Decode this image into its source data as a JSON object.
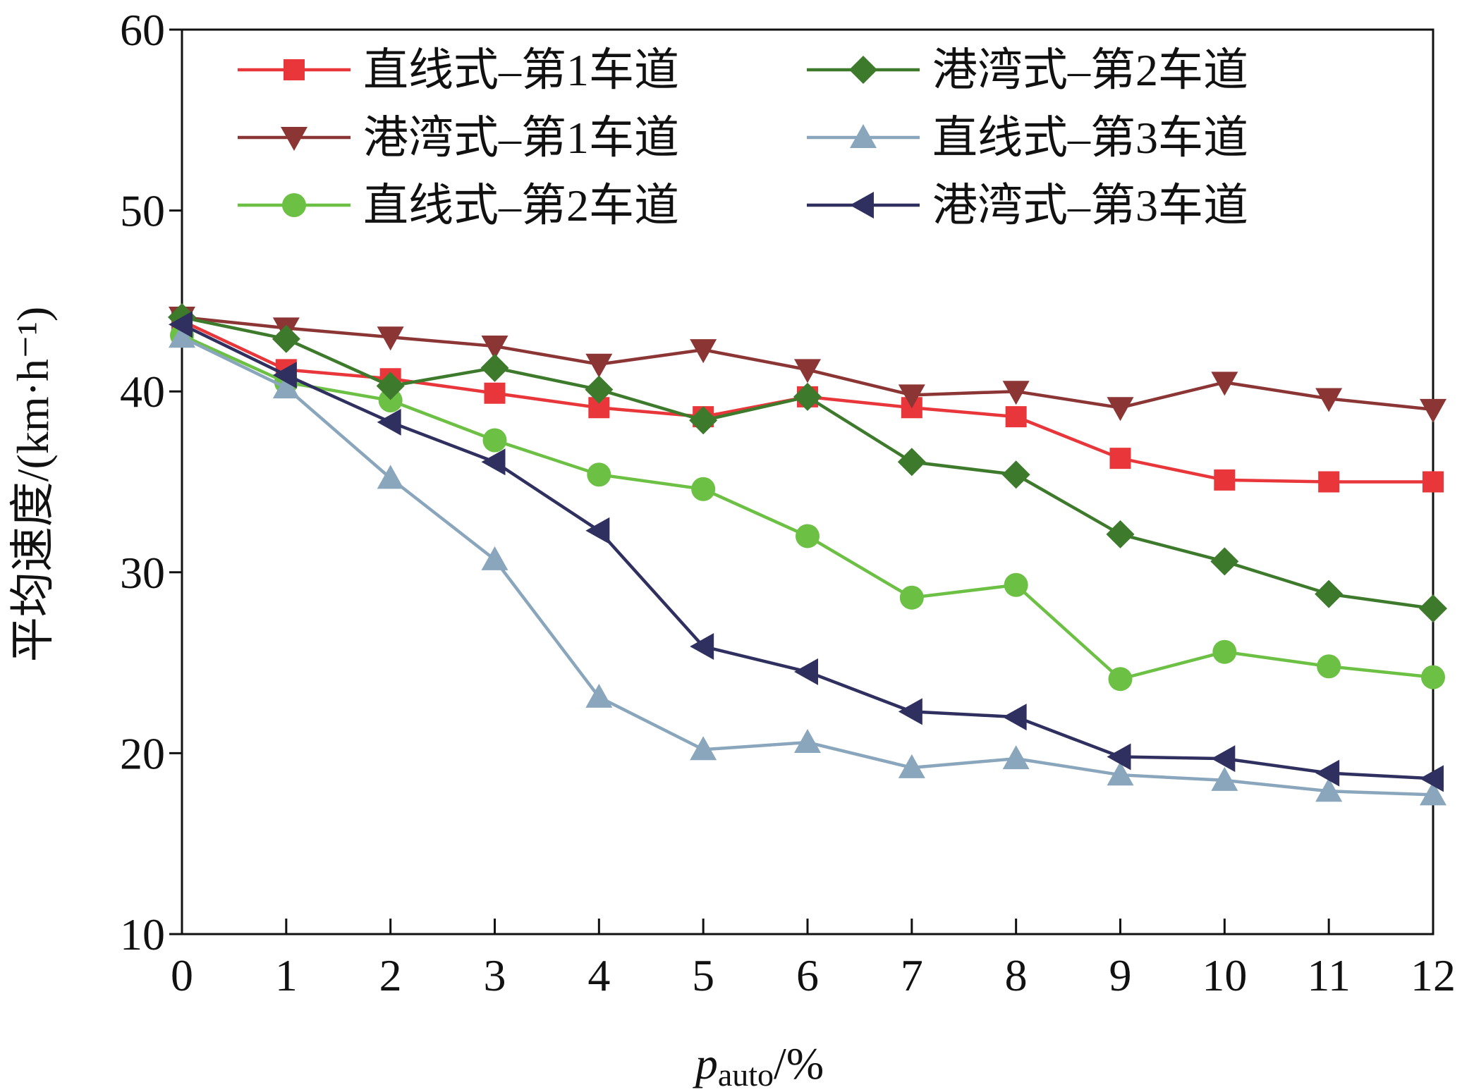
{
  "chart_data": {
    "type": "line",
    "x_label": {
      "text": "p",
      "subscript": "auto",
      "suffix": "/%"
    },
    "y_label": "平均速度/(km·h⁻¹)",
    "x": [
      0,
      1,
      2,
      3,
      4,
      5,
      6,
      7,
      8,
      9,
      10,
      11,
      12
    ],
    "xlim": [
      0,
      12
    ],
    "xticks": [
      0,
      1,
      2,
      3,
      4,
      5,
      6,
      7,
      8,
      9,
      10,
      11,
      12
    ],
    "ylim": [
      10,
      60
    ],
    "yticks": [
      10,
      20,
      30,
      40,
      50,
      60
    ],
    "legend": "upper",
    "series": [
      {
        "name": "直线式–第1车道",
        "color": "#e8363a",
        "marker": "square",
        "values": [
          43.9,
          41.2,
          40.7,
          39.9,
          39.1,
          38.6,
          39.7,
          39.1,
          38.6,
          36.3,
          35.1,
          35.0,
          35.0
        ]
      },
      {
        "name": "港湾式–第1车道",
        "color": "#8b3535",
        "marker": "triangle-down",
        "values": [
          44.1,
          43.5,
          43.0,
          42.5,
          41.5,
          42.3,
          41.2,
          39.8,
          40.0,
          39.1,
          40.5,
          39.6,
          39.0
        ]
      },
      {
        "name": "直线式–第2车道",
        "color": "#6cc043",
        "marker": "circle",
        "values": [
          43.1,
          40.5,
          39.5,
          37.3,
          35.4,
          34.6,
          32.0,
          28.6,
          29.3,
          24.1,
          25.6,
          24.8,
          24.2
        ]
      },
      {
        "name": "港湾式–第2车道",
        "color": "#3d7a2c",
        "marker": "diamond",
        "values": [
          44.1,
          42.9,
          40.3,
          41.3,
          40.1,
          38.4,
          39.7,
          36.1,
          35.4,
          32.1,
          30.6,
          28.8,
          28.0
        ]
      },
      {
        "name": "直线式–第3车道",
        "color": "#89a6bd",
        "marker": "triangle-up",
        "values": [
          43.0,
          40.2,
          35.2,
          30.7,
          23.1,
          20.2,
          20.6,
          19.2,
          19.7,
          18.8,
          18.5,
          17.9,
          17.7
        ]
      },
      {
        "name": "港湾式–第3车道",
        "color": "#2f3060",
        "marker": "triangle-left",
        "values": [
          43.7,
          40.9,
          38.3,
          36.1,
          32.3,
          25.9,
          24.5,
          22.3,
          22.0,
          19.8,
          19.7,
          18.9,
          18.6
        ]
      }
    ]
  }
}
